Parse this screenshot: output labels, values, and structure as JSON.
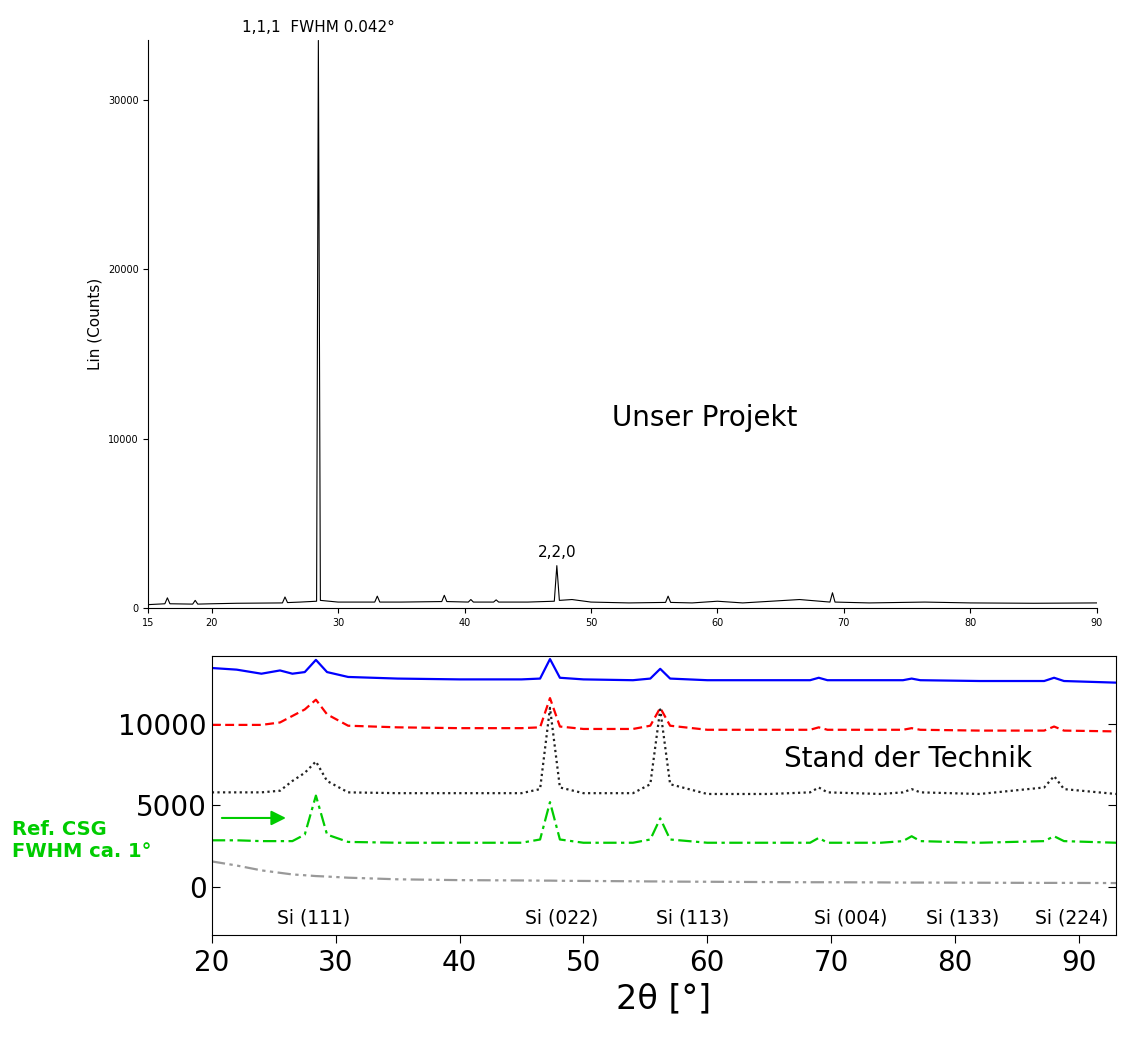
{
  "chart_data": [
    {
      "type": "line",
      "title": "Unser Projekt",
      "y_label": "Lin (Counts)",
      "x": [
        15,
        16.3,
        16.5,
        16.7,
        18.5,
        18.7,
        18.9,
        20,
        22,
        25.6,
        25.8,
        26,
        27,
        28.3,
        28.44,
        28.6,
        30,
        32.9,
        33.1,
        33.3,
        35,
        38.2,
        38.4,
        38.6,
        40.3,
        40.5,
        40.7,
        42.3,
        42.5,
        42.7,
        45,
        47.1,
        47.3,
        47.5,
        48.5,
        50,
        53,
        55.9,
        56.1,
        56.3,
        58,
        60,
        62,
        66.5,
        68.9,
        69.1,
        69.3,
        72,
        76.4,
        80,
        85,
        90
      ],
      "series": [
        {
          "color": "#000000",
          "line_style": "solid",
          "values": [
            200,
            250,
            600,
            250,
            230,
            450,
            230,
            250,
            280,
            300,
            650,
            320,
            350,
            400,
            33500,
            450,
            350,
            350,
            700,
            350,
            350,
            380,
            750,
            380,
            350,
            500,
            350,
            350,
            480,
            350,
            350,
            400,
            2500,
            450,
            500,
            350,
            300,
            330,
            700,
            330,
            300,
            400,
            300,
            500,
            350,
            900,
            350,
            300,
            350,
            300,
            280,
            300
          ]
        }
      ],
      "xlim": [
        15,
        90
      ],
      "xticks": [
        15,
        20,
        30,
        40,
        50,
        60,
        70,
        80,
        90
      ],
      "ylim": [
        0,
        33500
      ],
      "yticks": [
        0,
        10000,
        20000,
        30000
      ],
      "annotations": [
        {
          "text": "1,1,1  FWHM 0.042°",
          "x": 28.44
        },
        {
          "text": "2,2,0",
          "x": 47.3
        }
      ]
    },
    {
      "type": "line",
      "title": "Stand der Technik",
      "x_label": "2θ [°]",
      "x": [
        20,
        22,
        24,
        25.5,
        26.5,
        27.5,
        28.4,
        29.3,
        31,
        35,
        40,
        45,
        46.5,
        47.3,
        48.1,
        50,
        54,
        55.4,
        56.2,
        57,
        60,
        65,
        68.3,
        69,
        69.7,
        74,
        75.8,
        76.5,
        77.2,
        82,
        87.2,
        88,
        88.8,
        93
      ],
      "series": [
        {
          "color": "#0000ff",
          "line_style": "solid",
          "values": [
            13450,
            13350,
            13100,
            13300,
            13100,
            13200,
            13950,
            13200,
            12900,
            12800,
            12750,
            12750,
            12800,
            14000,
            12850,
            12750,
            12700,
            12800,
            13400,
            12800,
            12700,
            12700,
            12700,
            12850,
            12700,
            12700,
            12700,
            12800,
            12700,
            12650,
            12650,
            12850,
            12650,
            12550
          ]
        },
        {
          "color": "#ff0000",
          "line_style": "dashed",
          "values": [
            9950,
            9950,
            9950,
            10100,
            10500,
            10900,
            11500,
            10600,
            9900,
            9800,
            9750,
            9750,
            9800,
            11600,
            9850,
            9700,
            9700,
            9900,
            11000,
            9900,
            9650,
            9650,
            9650,
            9800,
            9650,
            9650,
            9650,
            9750,
            9650,
            9600,
            9600,
            9850,
            9600,
            9550
          ]
        },
        {
          "color": "#222222",
          "line_style": "dotted",
          "values": [
            5800,
            5800,
            5800,
            5900,
            6500,
            7000,
            7700,
            6500,
            5800,
            5750,
            5750,
            5750,
            6000,
            11000,
            6100,
            5750,
            5750,
            6300,
            10900,
            6300,
            5700,
            5700,
            5800,
            6100,
            5800,
            5700,
            5800,
            6000,
            5800,
            5700,
            6100,
            6800,
            6000,
            5700
          ]
        },
        {
          "color": "#00cc00",
          "line_style": "dashdot",
          "note": "Ref. CSG\nFWHM ca. 1°",
          "values": [
            2850,
            2850,
            2800,
            2800,
            2800,
            3200,
            5600,
            3200,
            2750,
            2700,
            2700,
            2700,
            2900,
            5200,
            2900,
            2700,
            2700,
            2900,
            4200,
            2900,
            2700,
            2700,
            2700,
            3000,
            2700,
            2700,
            2800,
            3100,
            2800,
            2700,
            2800,
            3100,
            2800,
            2700
          ]
        },
        {
          "color": "#999999",
          "line_style": "dashdotdot",
          "values": [
            1550,
            1300,
            1000,
            850,
            750,
            700,
            650,
            620,
            550,
            450,
            400,
            380,
            370,
            370,
            360,
            350,
            330,
            320,
            320,
            310,
            300,
            280,
            270,
            270,
            270,
            260,
            250,
            250,
            250,
            240,
            230,
            230,
            230,
            220
          ]
        }
      ],
      "xlim": [
        20,
        93
      ],
      "xticks": [
        20,
        30,
        40,
        50,
        60,
        70,
        80,
        90
      ],
      "ylim": [
        -3000,
        14200
      ],
      "yticks": [
        0,
        5000,
        10000
      ],
      "annotations": [
        {
          "text": "Si (111)",
          "x": 28.2
        },
        {
          "text": "Si (022)",
          "x": 48.2
        },
        {
          "text": "Si (113)",
          "x": 58.8
        },
        {
          "text": "Si (004)",
          "x": 71.6
        },
        {
          "text": "Si (133)",
          "x": 80.6
        },
        {
          "text": "Si (224)",
          "x": 89.4
        }
      ]
    }
  ]
}
